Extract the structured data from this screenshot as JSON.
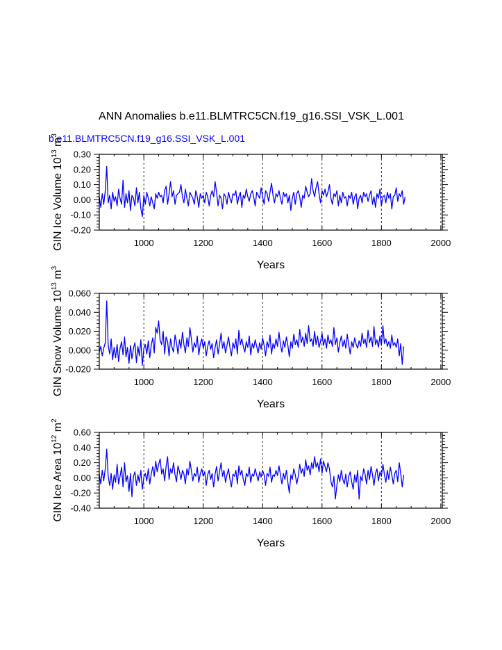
{
  "title": "ANN Anomalies b.e11.BLMTRC5CN.f19_g16.SSI_VSK_L.001",
  "subtitle": "b.e11.BLMTRC5CN.f19_g16.SSI_VSK_L.001",
  "colors": {
    "series": "#0000ff",
    "subtitle": "#0000ff",
    "axis": "#000000"
  },
  "chart_data": [
    {
      "type": "line",
      "ylabel": "GIN Ice Volume 10",
      "ylabel_exp": "13",
      "ylabel_unit": "m",
      "ylabel_unit_exp": "3",
      "xlabel": "Years",
      "xlim": [
        850,
        2005
      ],
      "ylim": [
        -0.2,
        0.3
      ],
      "xticks": [
        1000,
        1200,
        1400,
        1600,
        1800,
        2000
      ],
      "xtick_labels": [
        "1000",
        "1200",
        "1400",
        "1600",
        "1800",
        "2000"
      ],
      "yticks": [
        -0.2,
        -0.1,
        0.0,
        0.1,
        0.2,
        0.3
      ],
      "ytick_labels": [
        "-0.20",
        "-0.10",
        "0.00",
        "0.10",
        "0.20",
        "0.30"
      ],
      "grid": "dashed vertical at x ticks",
      "series": [
        {
          "color": "#0000ff",
          "x_start": 850,
          "x_step": 5,
          "values": [
            0.02,
            -0.05,
            0.04,
            -0.03,
            0.06,
            0.22,
            -0.02,
            0.03,
            -0.06,
            0.05,
            -0.01,
            0.02,
            -0.04,
            0.07,
            0.01,
            -0.03,
            0.13,
            -0.05,
            0.04,
            -0.02,
            0.06,
            -0.07,
            0.03,
            0.01,
            -0.04,
            0.08,
            -0.02,
            0.05,
            -0.06,
            -0.11,
            0.03,
            -0.03,
            0.05,
            0.01,
            -0.04,
            0.02,
            -0.02,
            -0.06,
            0.04,
            0.01,
            0.05,
            0.02,
            0.03,
            -0.02,
            0.06,
            0.09,
            -0.03,
            0.04,
            0.12,
            0.02,
            0.06,
            -0.03,
            0.03,
            0.04,
            0.05,
            0.1,
            0.02,
            -0.02,
            0.07,
            0.01,
            -0.04,
            0.05,
            0.03,
            0.01,
            -0.03,
            0.06,
            0.02,
            -0.05,
            0.04,
            0.01,
            0.03,
            -0.02,
            0.05,
            0.02,
            -0.04,
            0.03,
            0.06,
            0.02,
            0.12,
            0.05,
            -0.04,
            0.03,
            0.01,
            -0.06,
            0.04,
            0.02,
            -0.03,
            0.05,
            0.01,
            -0.02,
            0.04,
            0.03,
            0.06,
            -0.03,
            0.02,
            0.05,
            -0.05,
            0.03,
            0.01,
            0.07,
            0.02,
            -0.01,
            0.04,
            0.06,
            0.02,
            -0.04,
            0.05,
            0.03,
            0.01,
            0.08,
            0.02,
            -0.03,
            0.06,
            0.04,
            -0.01,
            0.05,
            0.11,
            0.03,
            -0.02,
            0.04,
            0.02,
            0.06,
            0.01,
            -0.03,
            0.05,
            0.02,
            0.04,
            -0.02,
            0.03,
            -0.07,
            0.01,
            0.05,
            -0.03,
            0.04,
            0.06,
            0.02,
            -0.05,
            0.03,
            0.01,
            0.09,
            0.05,
            0.02,
            0.04,
            0.14,
            0.06,
            0.02,
            0.08,
            0.12,
            0.04,
            -0.02,
            0.06,
            0.03,
            0.07,
            0.02,
            0.05,
            0.1,
            0.01,
            -0.03,
            0.04,
            0.02,
            0.06,
            -0.04,
            0.03,
            -0.02,
            0.05,
            0.01,
            0.02,
            -0.04,
            0.03,
            0.01,
            0.05,
            -0.03,
            0.02,
            0.04,
            -0.06,
            0.01,
            0.03,
            -0.02,
            0.05,
            0.02,
            0.04,
            -0.01,
            0.03,
            0.06,
            -0.03,
            0.02,
            -0.05,
            0.04,
            0.01,
            0.07,
            -0.04,
            0.02,
            0.03,
            -0.02,
            0.05,
            0.01,
            0.04,
            -0.06,
            0.02,
            0.03,
            0.08,
            -0.01,
            0.04,
            0.02,
            0.06,
            -0.03,
            0.02
          ]
        }
      ]
    },
    {
      "type": "line",
      "ylabel": "GIN Snow Volume 10",
      "ylabel_exp": "13",
      "ylabel_unit": "m",
      "ylabel_unit_exp": "3",
      "xlabel": "Years",
      "xlim": [
        850,
        2005
      ],
      "ylim": [
        -0.02,
        0.06
      ],
      "xticks": [
        1000,
        1200,
        1400,
        1600,
        1800,
        2000
      ],
      "xtick_labels": [
        "1000",
        "1200",
        "1400",
        "1600",
        "1800",
        "2000"
      ],
      "yticks": [
        -0.02,
        0.0,
        0.02,
        0.04,
        0.06
      ],
      "ytick_labels": [
        "-0.020",
        "0.000",
        "0.020",
        "0.040",
        "0.060"
      ],
      "grid": "dashed vertical at x ticks",
      "series": [
        {
          "color": "#0000ff",
          "x_start": 850,
          "x_step": 5,
          "values": [
            -0.002,
            0.004,
            -0.006,
            0.002,
            0.008,
            0.052,
            0.005,
            -0.004,
            0.012,
            -0.01,
            0.003,
            -0.008,
            0.006,
            -0.012,
            0.002,
            0.009,
            -0.005,
            0.014,
            -0.007,
            0.003,
            -0.014,
            0.005,
            -0.009,
            0.002,
            0.008,
            -0.013,
            0.004,
            -0.006,
            0.011,
            -0.016,
            0.002,
            0.006,
            -0.004,
            0.01,
            -0.008,
            0.005,
            0.013,
            -0.003,
            0.024,
            0.018,
            0.031,
            0.01,
            0.006,
            0.02,
            -0.004,
            0.014,
            0.009,
            -0.006,
            0.012,
            0.003,
            -0.002,
            0.016,
            0.008,
            -0.004,
            0.011,
            0.002,
            0.019,
            0.006,
            -0.003,
            0.013,
            0.004,
            0.024,
            0.012,
            -0.002,
            0.008,
            0.003,
            0.015,
            -0.005,
            0.006,
            0.012,
            0.002,
            0.009,
            -0.006,
            0.004,
            0.01,
            0.001,
            0.007,
            -0.008,
            0.003,
            0.011,
            -0.004,
            0.006,
            0.018,
            0.002,
            0.009,
            -0.003,
            0.005,
            0.014,
            0.003,
            -0.006,
            0.008,
            0.002,
            0.012,
            -0.004,
            0.021,
            0.006,
            0.012,
            0.004,
            -0.002,
            0.009,
            0.003,
            0.015,
            -0.005,
            0.007,
            0.002,
            0.011,
            0.004,
            -0.003,
            0.008,
            0.001,
            0.013,
            0.005,
            -0.006,
            0.009,
            0.003,
            0.016,
            -0.004,
            0.007,
            0.002,
            0.012,
            0.004,
            0.019,
            0.006,
            -0.002,
            0.01,
            0.003,
            0.014,
            0.005,
            -0.007,
            0.009,
            0.002,
            0.017,
            0.006,
            0.011,
            0.003,
            0.022,
            0.008,
            0.014,
            0.004,
            0.018,
            0.007,
            0.026,
            0.009,
            0.012,
            0.004,
            0.02,
            0.006,
            0.015,
            0.003,
            0.009,
            0.018,
            0.005,
            0.012,
            0.002,
            0.016,
            0.007,
            0.011,
            0.004,
            0.024,
            0.006,
            0.013,
            -0.002,
            0.008,
            0.015,
            0.004,
            0.011,
            0.002,
            0.017,
            0.005,
            -0.004,
            0.009,
            0.003,
            0.013,
            0.006,
            0.002,
            0.01,
            0.004,
            0.018,
            0.007,
            0.012,
            0.003,
            0.021,
            0.008,
            0.014,
            0.004,
            0.025,
            0.006,
            0.011,
            0.003,
            0.015,
            0.005,
            0.026,
            0.007,
            0.012,
            0.004,
            0.009,
            0.002,
            0.016,
            0.005,
            0.008,
            0.003,
            0.012,
            -0.006,
            0.007,
            -0.015,
            0.004
          ]
        }
      ]
    },
    {
      "type": "line",
      "ylabel": "GIN Ice Area 10",
      "ylabel_exp": "12",
      "ylabel_unit": "m",
      "ylabel_unit_exp": "2",
      "xlabel": "Years",
      "xlim": [
        850,
        2005
      ],
      "ylim": [
        -0.4,
        0.6
      ],
      "xticks": [
        1000,
        1200,
        1400,
        1600,
        1800,
        2000
      ],
      "xtick_labels": [
        "1000",
        "1200",
        "1400",
        "1600",
        "1800",
        "2000"
      ],
      "yticks": [
        -0.4,
        -0.2,
        0.0,
        0.2,
        0.4,
        0.6
      ],
      "ytick_labels": [
        "-0.40",
        "-0.20",
        "0.00",
        "0.20",
        "0.40",
        "0.60"
      ],
      "grid": "dashed vertical at x ticks",
      "series": [
        {
          "color": "#0000ff",
          "x_start": 850,
          "x_step": 5,
          "values": [
            0.05,
            -0.08,
            0.1,
            -0.04,
            0.12,
            0.38,
            0.02,
            -0.1,
            0.06,
            -0.15,
            0.04,
            -0.06,
            0.18,
            -0.08,
            0.02,
            0.14,
            -0.12,
            0.2,
            -0.05,
            0.03,
            -0.18,
            0.06,
            -0.25,
            0.02,
            0.08,
            -0.1,
            0.04,
            -0.06,
            0.1,
            -0.15,
            0.01,
            0.06,
            -0.04,
            0.12,
            -0.08,
            0.05,
            0.15,
            0.02,
            0.22,
            0.08,
            0.18,
            0.25,
            0.05,
            0.12,
            -0.04,
            0.15,
            0.28,
            -0.02,
            0.12,
            0.06,
            0.2,
            0.04,
            -0.05,
            0.16,
            0.08,
            -0.02,
            0.1,
            0.05,
            -0.08,
            0.12,
            0.04,
            0.22,
            0.1,
            -0.04,
            0.06,
            0.02,
            0.14,
            -0.06,
            0.05,
            0.12,
            0.02,
            0.08,
            -0.1,
            0.04,
            0.1,
            -0.02,
            0.06,
            -0.12,
            0.05,
            0.15,
            -0.04,
            0.08,
            0.2,
            0.02,
            0.1,
            -0.06,
            0.04,
            0.12,
            -0.02,
            -0.12,
            0.05,
            0.02,
            0.1,
            -0.08,
            0.16,
            0.04,
            0.1,
            -0.02,
            -0.1,
            0.06,
            0.02,
            0.14,
            -0.06,
            0.05,
            0.02,
            0.12,
            0.04,
            -0.04,
            0.08,
            0.01,
            0.1,
            0.04,
            -0.1,
            0.06,
            0.02,
            0.14,
            -0.06,
            0.04,
            0.02,
            0.1,
            0.03,
            0.16,
            0.04,
            -0.08,
            0.06,
            -0.02,
            0.1,
            -0.06,
            -0.2,
            0.04,
            -0.02,
            0.12,
            0.04,
            -0.08,
            0.02,
            0.18,
            0.06,
            0.12,
            0.02,
            0.24,
            0.1,
            0.16,
            0.04,
            0.2,
            0.12,
            0.28,
            0.14,
            0.2,
            0.08,
            0.25,
            0.06,
            0.22,
            0.15,
            0.08,
            0.2,
            0.12,
            -0.05,
            -0.12,
            0.02,
            -0.28,
            -0.1,
            0.04,
            -0.05,
            0.1,
            -0.02,
            -0.08,
            0.05,
            -0.12,
            0.02,
            0.08,
            -0.05,
            -0.15,
            0.04,
            -0.06,
            0.1,
            -0.28,
            0.02,
            -0.04,
            0.12,
            0.05,
            -0.08,
            0.1,
            -0.02,
            0.15,
            0.04,
            -0.1,
            0.06,
            0.12,
            -0.04,
            0.08,
            0.02,
            0.18,
            0.05,
            -0.06,
            0.1,
            -0.02,
            0.14,
            0.04,
            -0.08,
            0.06,
            0.1,
            -0.05,
            0.2,
            0.06,
            -0.12,
            0.04
          ]
        }
      ]
    }
  ]
}
